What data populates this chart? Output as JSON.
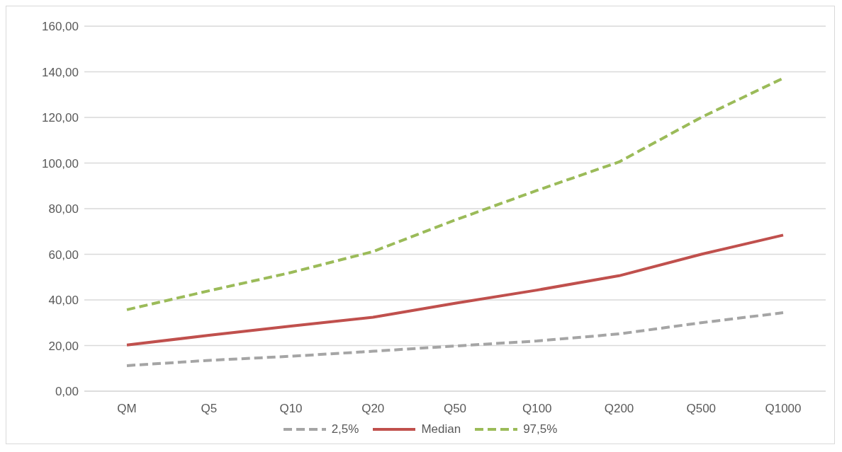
{
  "chart_data": {
    "type": "line",
    "categories": [
      "QM",
      "Q5",
      "Q10",
      "Q20",
      "Q50",
      "Q100",
      "Q200",
      "Q500",
      "Q1000"
    ],
    "series": [
      {
        "name": "2,5%",
        "color": "#a5a5a5",
        "line_style": "dashed",
        "values": [
          11.2,
          13.5,
          15.3,
          17.5,
          19.8,
          22.0,
          25.1,
          30.0,
          34.4
        ]
      },
      {
        "name": "Median",
        "color": "#c0504d",
        "line_style": "solid",
        "values": [
          20.2,
          24.5,
          28.5,
          32.4,
          38.5,
          44.3,
          50.6,
          60.0,
          68.4
        ]
      },
      {
        "name": "97,5%",
        "color": "#9bbb59",
        "line_style": "dashed",
        "values": [
          35.7,
          44.0,
          52.0,
          61.2,
          75.0,
          88.0,
          100.5,
          120.0,
          137.2
        ]
      }
    ],
    "ylim": [
      0,
      160
    ],
    "yticks": [
      {
        "value": 0,
        "label": "0,00"
      },
      {
        "value": 20,
        "label": "20,00"
      },
      {
        "value": 40,
        "label": "40,00"
      },
      {
        "value": 60,
        "label": "60,00"
      },
      {
        "value": 80,
        "label": "80,00"
      },
      {
        "value": 100,
        "label": "100,00"
      },
      {
        "value": 120,
        "label": "120,00"
      },
      {
        "value": 140,
        "label": "140,00"
      },
      {
        "value": 160,
        "label": "160,00"
      }
    ],
    "grid": "y",
    "legend": "bottom",
    "marker": "none"
  }
}
